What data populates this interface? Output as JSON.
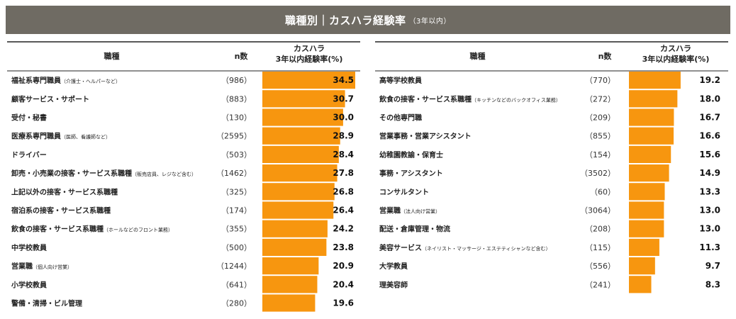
{
  "title": "職種別｜カスハラ経験率",
  "subtitle": "（3年以内）",
  "headers": {
    "job": "職種",
    "n": "n数",
    "rate_line1": "カスハラ",
    "rate_line2": "3年以内経験率(%)"
  },
  "colors": {
    "bar": "#f7960f",
    "banner": "#6f6b63"
  },
  "chart_data": [
    {
      "type": "bar",
      "orientation": "horizontal",
      "xlim": [
        0,
        34.5
      ],
      "categories": [
        {
          "name": "福祉系専門職員",
          "note": "（介護士・ヘルパーなど）"
        },
        {
          "name": "顧客サービス・サポート",
          "note": ""
        },
        {
          "name": "受付・秘書",
          "note": ""
        },
        {
          "name": "医療系専門職員",
          "note": "（医師、看護師など）"
        },
        {
          "name": "ドライバー",
          "note": ""
        },
        {
          "name": "卸売・小売業の接客・サービス系職種",
          "note": "（販売店員、レジなど含む）"
        },
        {
          "name": "上記以外の接客・サービス系職種",
          "note": ""
        },
        {
          "name": "宿泊系の接客・サービス系職種",
          "note": ""
        },
        {
          "name": "飲食の接客・サービス系職種",
          "note": "（ホールなどのフロント業務）"
        },
        {
          "name": "中学校教員",
          "note": ""
        },
        {
          "name": "営業職",
          "note": "（個人向け営業）"
        },
        {
          "name": "小学校教員",
          "note": ""
        },
        {
          "name": "警備・清掃・ビル管理",
          "note": ""
        }
      ],
      "n": [
        "（986）",
        "（883）",
        "（130）",
        "（2595）",
        "（503）",
        "（1462）",
        "（325）",
        "（174）",
        "（355）",
        "（500）",
        "（1244）",
        "（641）",
        "（280）"
      ],
      "values": [
        34.5,
        30.7,
        30.0,
        28.9,
        28.4,
        27.8,
        26.8,
        26.4,
        24.2,
        23.8,
        20.9,
        20.4,
        19.6
      ],
      "value_labels": [
        "34.5",
        "30.7",
        "30.0",
        "28.9",
        "28.4",
        "27.8",
        "26.8",
        "26.4",
        "24.2",
        "23.8",
        "20.9",
        "20.4",
        "19.6"
      ]
    },
    {
      "type": "bar",
      "orientation": "horizontal",
      "xlim": [
        0,
        34.5
      ],
      "categories": [
        {
          "name": "高等学校教員",
          "note": ""
        },
        {
          "name": "飲食の接客・サービス系職種",
          "note": "（キッチンなどのバックオフィス業務）"
        },
        {
          "name": "その他専門職",
          "note": ""
        },
        {
          "name": "営業事務・営業アシスタント",
          "note": ""
        },
        {
          "name": "幼稚園教諭・保育士",
          "note": ""
        },
        {
          "name": "事務・アシスタント",
          "note": ""
        },
        {
          "name": "コンサルタント",
          "note": ""
        },
        {
          "name": "営業職",
          "note": "（法人向け営業）"
        },
        {
          "name": "配送・倉庫管理・物流",
          "note": ""
        },
        {
          "name": "美容サービス",
          "note": "（ネイリスト・マッサージ・エステティシャンなど含む）"
        },
        {
          "name": "大学教員",
          "note": ""
        },
        {
          "name": "理美容師",
          "note": ""
        }
      ],
      "n": [
        "（770）",
        "（272）",
        "（209）",
        "（855）",
        "（154）",
        "（3502）",
        "（60）",
        "（3064）",
        "（208）",
        "（115）",
        "（556）",
        "（241）"
      ],
      "values": [
        19.2,
        18.0,
        16.7,
        16.6,
        15.6,
        14.9,
        13.3,
        13.0,
        13.0,
        11.3,
        9.7,
        8.3
      ],
      "value_labels": [
        "19.2",
        "18.0",
        "16.7",
        "16.6",
        "15.6",
        "14.9",
        "13.3",
        "13.0",
        "13.0",
        "11.3",
        "9.7",
        "8.3"
      ]
    }
  ]
}
